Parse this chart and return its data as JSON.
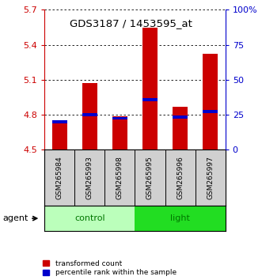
{
  "title": "GDS3187 / 1453595_at",
  "samples": [
    "GSM265984",
    "GSM265993",
    "GSM265998",
    "GSM265995",
    "GSM265996",
    "GSM265997"
  ],
  "red_values": [
    4.73,
    5.07,
    4.79,
    5.55,
    4.87,
    5.32
  ],
  "blue_values": [
    4.74,
    4.8,
    4.77,
    4.93,
    4.78,
    4.83
  ],
  "ymin": 4.5,
  "ymax": 5.7,
  "yticks": [
    4.5,
    4.8,
    5.1,
    5.4,
    5.7
  ],
  "ytick_labels": [
    "4.5",
    "4.8",
    "5.1",
    "5.4",
    "5.7"
  ],
  "right_ytick_labels": [
    "0",
    "25",
    "50",
    "75",
    "100%"
  ],
  "bar_bottom": 4.5,
  "bar_width": 0.5,
  "red_color": "#cc0000",
  "blue_color": "#0000cc",
  "control_color": "#bbffbb",
  "light_color": "#22dd22",
  "group_label_color": "#007700",
  "sample_area_color": "#d0d0d0",
  "legend_red_label": "transformed count",
  "legend_blue_label": "percentile rank within the sample",
  "agent_label": "agent"
}
